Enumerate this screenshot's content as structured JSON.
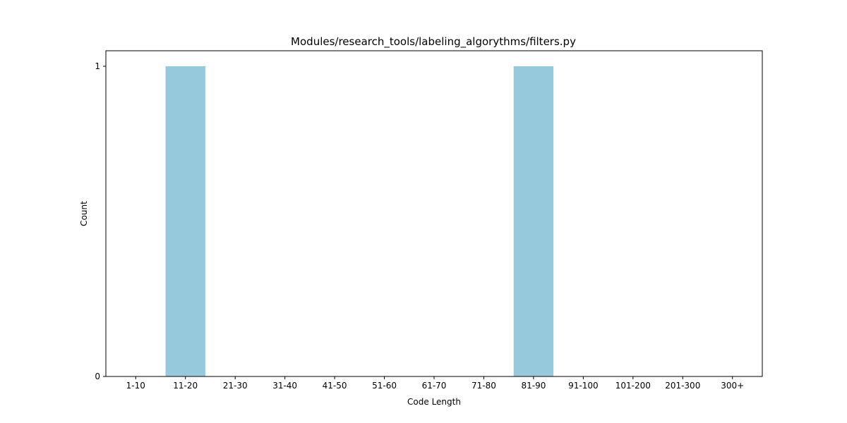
{
  "chart_data": {
    "type": "bar",
    "title": "Modules/research_tools/labeling_algorythms/filters.py",
    "xlabel": "Code Length",
    "ylabel": "Count",
    "categories": [
      "1-10",
      "11-20",
      "21-30",
      "31-40",
      "41-50",
      "51-60",
      "61-70",
      "71-80",
      "81-90",
      "91-100",
      "101-200",
      "201-300",
      "300+"
    ],
    "values": [
      0,
      1,
      0,
      0,
      0,
      0,
      0,
      0,
      1,
      0,
      0,
      0,
      0
    ],
    "ylim": [
      0,
      1.05
    ],
    "yticks": [
      0,
      1
    ],
    "bar_color": "#96c9dc",
    "grid": false,
    "legend": "none"
  }
}
